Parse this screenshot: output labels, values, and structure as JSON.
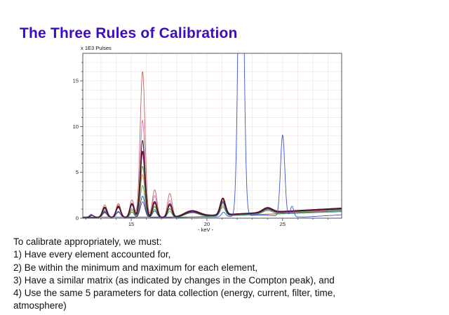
{
  "slide": {
    "title": "The Three Rules of Calibration",
    "title_color": "#3a0cc4"
  },
  "body": {
    "lines": [
      "To calibrate appropriately, we must:",
      "1) Have every element accounted for,",
      "2) Be within the minimum and maximum for each element,",
      "3) Have a similar matrix (as indicated by changes in the Compton peak), and",
      "4) Use the same 5 parameters for data collection (energy, current, filter, time,",
      "atmosphere)"
    ]
  },
  "chart_data": {
    "type": "line",
    "title": "",
    "ylabel": "x 1E3 Pulses",
    "xlabel": "- keV -",
    "xlim": [
      11.8,
      28.9
    ],
    "ylim": [
      0,
      18
    ],
    "x_major_ticks": [
      15,
      20,
      25
    ],
    "x_minor_step": 1,
    "y_major_ticks": [
      0,
      5,
      10,
      15
    ],
    "y_minor_step": 1,
    "grid": {
      "on": true,
      "color": "#f3e2e2",
      "x_step": 1,
      "y_step": 1
    },
    "frame_color": "#555555",
    "tick_color": "#444444",
    "label_color": "#222222",
    "legend": "none",
    "description": "Overlaid XRF spectra of many samples; peaks listed as [center_keV, height_1E3_pulses, sigma_keV]; ramp = [x_start, x_end, added_height] rising baseline; tall blue peak at 22.25 keV is clipped at plot top",
    "series": [
      {
        "name": "spectrum-salmon",
        "color": "#c4645f",
        "width": 0.9,
        "base": 0.1,
        "ramp": [
          18,
          29,
          0.8
        ],
        "peaks": [
          [
            12.4,
            0.18,
            0.12
          ],
          [
            13.25,
            1.35,
            0.15
          ],
          [
            14.15,
            1.5,
            0.15
          ],
          [
            15.05,
            1.9,
            0.14
          ],
          [
            15.75,
            15.9,
            0.16
          ],
          [
            16.55,
            3.0,
            0.15
          ],
          [
            17.55,
            2.6,
            0.15
          ],
          [
            19.0,
            0.45,
            0.45
          ],
          [
            21.05,
            1.6,
            0.17
          ],
          [
            24.0,
            0.4,
            0.3
          ]
        ]
      },
      {
        "name": "spectrum-pink",
        "color": "#cf5fb5",
        "width": 0.8,
        "base": 0.08,
        "ramp": [
          18,
          29,
          0.85
        ],
        "peaks": [
          [
            13.25,
            0.95,
            0.14
          ],
          [
            14.15,
            1.05,
            0.14
          ],
          [
            15.05,
            1.35,
            0.13
          ],
          [
            15.75,
            10.6,
            0.15
          ],
          [
            16.55,
            2.4,
            0.14
          ],
          [
            17.55,
            1.85,
            0.14
          ],
          [
            19.0,
            0.5,
            0.45
          ],
          [
            21.05,
            1.6,
            0.16
          ],
          [
            24.0,
            0.42,
            0.3
          ]
        ]
      },
      {
        "name": "spectrum-orange",
        "color": "#d4882f",
        "width": 0.8,
        "base": 0.07,
        "ramp": [
          18,
          29,
          0.7
        ],
        "peaks": [
          [
            13.25,
            0.55,
            0.14
          ],
          [
            14.15,
            1.4,
            0.14
          ],
          [
            15.05,
            0.75,
            0.13
          ],
          [
            15.75,
            4.7,
            0.15
          ],
          [
            16.55,
            1.15,
            0.14
          ],
          [
            17.55,
            0.95,
            0.14
          ],
          [
            21.05,
            1.15,
            0.16
          ]
        ]
      },
      {
        "name": "spectrum-green",
        "color": "#3d7d2c",
        "width": 0.8,
        "base": 0.07,
        "ramp": [
          18,
          29,
          0.75
        ],
        "peaks": [
          [
            13.25,
            0.7,
            0.14
          ],
          [
            14.15,
            1.25,
            0.14
          ],
          [
            15.05,
            0.95,
            0.13
          ],
          [
            15.75,
            5.6,
            0.15
          ],
          [
            16.55,
            1.25,
            0.14
          ],
          [
            17.55,
            1.0,
            0.14
          ],
          [
            19.0,
            0.45,
            0.45
          ],
          [
            21.05,
            1.35,
            0.16
          ],
          [
            24.0,
            0.35,
            0.3
          ]
        ]
      },
      {
        "name": "spectrum-teal",
        "color": "#2f9391",
        "width": 0.8,
        "base": 0.06,
        "ramp": [
          18,
          29,
          0.65
        ],
        "peaks": [
          [
            13.25,
            0.8,
            0.14
          ],
          [
            14.15,
            0.7,
            0.14
          ],
          [
            15.05,
            0.6,
            0.13
          ],
          [
            15.75,
            3.5,
            0.15
          ],
          [
            16.55,
            0.9,
            0.14
          ],
          [
            17.55,
            0.7,
            0.14
          ],
          [
            21.05,
            1.0,
            0.16
          ]
        ]
      },
      {
        "name": "spectrum-navy",
        "color": "#27357e",
        "width": 0.8,
        "base": 0.1,
        "ramp": [
          18,
          29,
          0.9
        ],
        "peaks": [
          [
            12.4,
            0.2,
            0.12
          ],
          [
            13.25,
            0.5,
            0.14
          ],
          [
            14.15,
            0.55,
            0.14
          ],
          [
            15.75,
            2.3,
            0.15
          ],
          [
            16.55,
            0.7,
            0.14
          ],
          [
            19.0,
            0.5,
            0.45
          ],
          [
            21.05,
            1.4,
            0.16
          ],
          [
            24.0,
            0.4,
            0.3
          ]
        ]
      },
      {
        "name": "spectrum-purple",
        "color": "#6d2f9c",
        "width": 0.8,
        "base": 0.09,
        "ramp": [
          18,
          29,
          0.95
        ],
        "peaks": [
          [
            13.25,
            0.6,
            0.14
          ],
          [
            14.15,
            0.6,
            0.14
          ],
          [
            15.75,
            1.7,
            0.15
          ],
          [
            19.0,
            0.55,
            0.45
          ],
          [
            21.05,
            1.5,
            0.16
          ],
          [
            24.0,
            0.45,
            0.3
          ]
        ]
      },
      {
        "name": "spectrum-maroon",
        "color": "#6e1638",
        "width": 1.7,
        "base": 0.1,
        "ramp": [
          18,
          29,
          1.0
        ],
        "peaks": [
          [
            12.4,
            0.2,
            0.13
          ],
          [
            13.25,
            1.1,
            0.15
          ],
          [
            14.15,
            1.2,
            0.15
          ],
          [
            15.05,
            1.5,
            0.14
          ],
          [
            15.75,
            7.2,
            0.16
          ],
          [
            16.55,
            1.7,
            0.15
          ],
          [
            17.55,
            1.45,
            0.15
          ],
          [
            19.0,
            0.62,
            0.5
          ],
          [
            21.05,
            1.8,
            0.17
          ],
          [
            24.0,
            0.5,
            0.32
          ]
        ]
      },
      {
        "name": "spectrum-black",
        "color": "#1c1c1c",
        "width": 0.9,
        "base": 0.09,
        "ramp": [
          18,
          29,
          0.95
        ],
        "peaks": [
          [
            13.25,
            1.0,
            0.14
          ],
          [
            14.15,
            1.1,
            0.14
          ],
          [
            15.05,
            1.4,
            0.13
          ],
          [
            15.75,
            8.4,
            0.15
          ],
          [
            16.55,
            1.55,
            0.14
          ],
          [
            17.55,
            1.3,
            0.14
          ],
          [
            19.0,
            0.6,
            0.45
          ],
          [
            21.05,
            1.75,
            0.16
          ],
          [
            24.0,
            0.48,
            0.3
          ]
        ]
      },
      {
        "name": "spectrum-blue",
        "color": "#3d53d0",
        "width": 0.9,
        "base": 0.13,
        "ramp": [
          26.5,
          29,
          0.25
        ],
        "peaks": [
          [
            12.35,
            0.3,
            0.1
          ],
          [
            21.1,
            0.5,
            0.14
          ],
          [
            22.25,
            40,
            0.17
          ],
          [
            23.5,
            0.2,
            1.0
          ],
          [
            25.0,
            8.9,
            0.14
          ],
          [
            25.62,
            1.15,
            0.11
          ]
        ]
      }
    ]
  }
}
